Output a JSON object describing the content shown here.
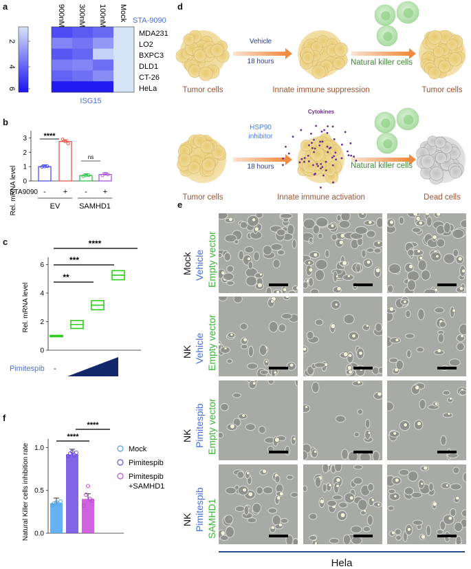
{
  "panels": {
    "a": "a",
    "b": "b",
    "c": "c",
    "d": "d",
    "e": "e",
    "f": "f"
  },
  "heatmap": {
    "columns": [
      "900nM",
      "300nM",
      "100nM",
      "Mock"
    ],
    "rows": [
      "MDA231",
      "LO2",
      "BXPC3",
      "DLD1",
      "CT-26",
      "HeLa"
    ],
    "drug_label": "STA-9090",
    "gene_label": "ISG15",
    "scale_ticks": [
      "2",
      "4",
      "6"
    ],
    "colors": {
      "low": "#d6e4f7",
      "high": "#1a12f2"
    },
    "values": [
      [
        5.0,
        4.6,
        4.2,
        1.0
      ],
      [
        3.5,
        3.9,
        3.0,
        1.0
      ],
      [
        4.7,
        4.3,
        1.5,
        1.0
      ],
      [
        3.7,
        3.5,
        4.1,
        1.0
      ],
      [
        4.4,
        4.0,
        3.3,
        1.0
      ],
      [
        6.3,
        6.3,
        6.3,
        1.0
      ]
    ]
  },
  "panel_b": {
    "ylabel": "Rel. mRNA level",
    "yticks": [
      "0",
      "1",
      "2",
      "3"
    ],
    "row_label": "STA9090",
    "signs": [
      "-",
      "+",
      "-",
      "+"
    ],
    "groups": [
      "EV",
      "SAMHD1"
    ],
    "sig": [
      "****",
      "ns"
    ],
    "colors": [
      "#3b3ff5",
      "#e8483d",
      "#1fbf3a",
      "#a04ad9"
    ]
  },
  "panel_c": {
    "ylabel": "Rel. mRNA level",
    "yticks": [
      "0",
      "2",
      "4",
      "6"
    ],
    "xlabel": "Pimitespib",
    "dash": "-",
    "sig": [
      "**",
      "***",
      "****"
    ],
    "color": "#2ecc1a"
  },
  "panel_d": {
    "top": {
      "left": "Tumor cells",
      "arrow_top": "Vehicle",
      "arrow_bottom": "18 hours",
      "middle": "Innate immune suppression",
      "arrow2": "Natural killer cells",
      "right": "Tumor cells"
    },
    "bottom": {
      "left": "Tumor cells",
      "arrow_top": "HSP90\ninhibitor",
      "arrow_bottom": "18 hours",
      "middle": "Innate immune activation",
      "cytokines": "Cytokines",
      "arrow2": "Natural killer cells",
      "right": "Dead cells"
    }
  },
  "panel_e": {
    "rows": [
      {
        "a": "Mock",
        "b": "Vehicle",
        "c": "Empty vector"
      },
      {
        "a": "NK",
        "b": "Vehicle",
        "c": "Empty vector"
      },
      {
        "a": "NK",
        "b": "Pimitespib",
        "c": "Empty vector"
      },
      {
        "a": "NK",
        "b": "Pimitespib",
        "c": "SAMHD1"
      }
    ],
    "footer": "Hela",
    "colors": {
      "b": "#4a6fd1",
      "c": "#3db33a"
    }
  },
  "panel_f": {
    "ylabel": "Natural Killer cells inhibition rate",
    "yticks": [
      "0.0",
      "0.5",
      "1.0"
    ],
    "sig": [
      "****",
      "****"
    ],
    "legend": [
      {
        "name": "Mock",
        "color": "#4aa3f0"
      },
      {
        "name": "Pimitespib",
        "color": "#6a4ae0"
      },
      {
        "name": "Pimitespib\n+SAMHD1",
        "color": "#c746d8"
      }
    ]
  },
  "chart_data": [
    {
      "type": "bar",
      "panel": "b",
      "ylabel": "Rel. mRNA level",
      "ylim": [
        0,
        3.5
      ],
      "categories": [
        "EV -",
        "EV +",
        "SAMHD1 -",
        "SAMHD1 +"
      ],
      "values": [
        1.0,
        2.75,
        0.38,
        0.45
      ]
    },
    {
      "type": "scatter",
      "panel": "c",
      "ylabel": "Rel. mRNA level",
      "ylim": [
        0,
        6.5
      ],
      "x": [
        1,
        2,
        3,
        4
      ],
      "values": [
        1.0,
        1.8,
        3.15,
        5.25
      ]
    },
    {
      "type": "bar",
      "panel": "f",
      "ylabel": "Natural Killer cells inhibition rate",
      "ylim": [
        0,
        1.1
      ],
      "categories": [
        "Mock",
        "Pimitespib",
        "Pimitespib +SAMHD1"
      ],
      "values": [
        0.35,
        0.92,
        0.4
      ]
    }
  ]
}
